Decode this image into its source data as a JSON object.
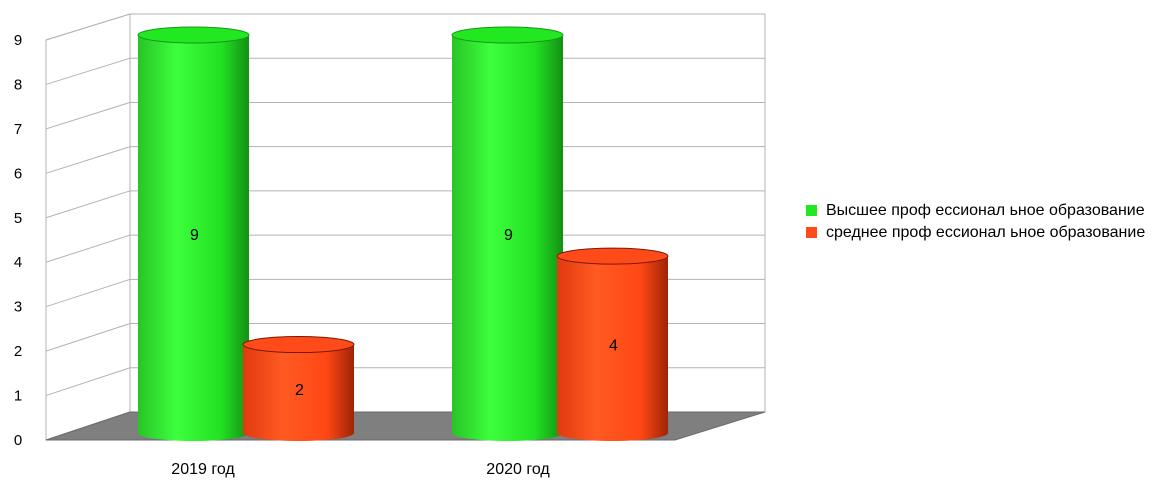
{
  "chart_data": {
    "type": "bar",
    "style": "3d-cylinder",
    "categories": [
      "2019 год",
      "2020 год"
    ],
    "series": [
      {
        "name": "Высшее проф ессионал ьное образование",
        "color": "#22e822",
        "values": [
          9,
          9
        ]
      },
      {
        "name": "среднее проф ессионал ьное образование",
        "color": "#ff4a1a",
        "values": [
          2,
          4
        ]
      }
    ],
    "yticks": [
      "0",
      "1",
      "2",
      "3",
      "4",
      "5",
      "6",
      "7",
      "8",
      "9"
    ],
    "ylim": [
      0,
      9
    ],
    "grid": true,
    "legend_position": "right",
    "data_labels": true
  }
}
